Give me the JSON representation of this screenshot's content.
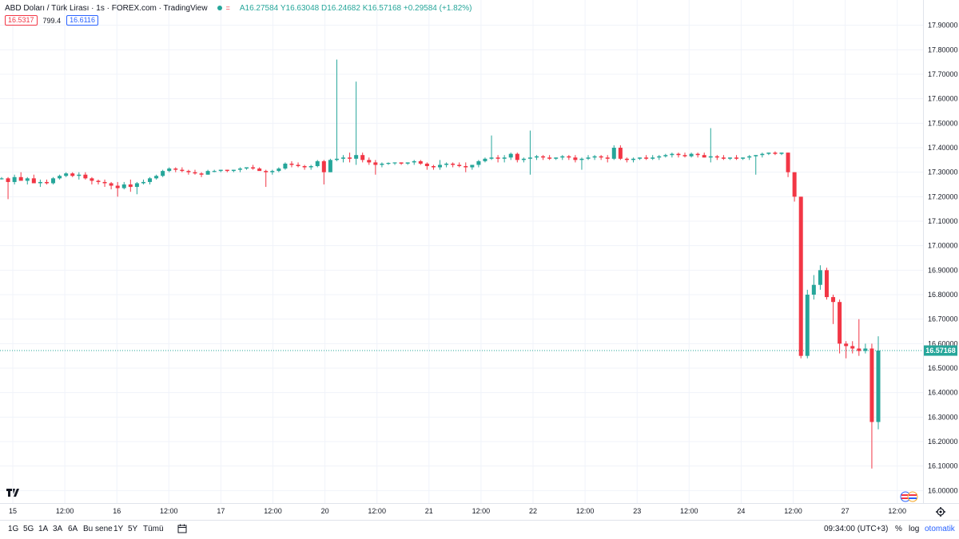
{
  "header": {
    "symbol": "ABD Doları / Türk Lirası · 1s · FOREX.com · TradingView",
    "status_mark": "=",
    "ohlc": "A16.27584 Y16.63048 D16.24682 K16.57168 +0.29584 (+1.82%)"
  },
  "trade": {
    "sell": "16.5317",
    "spread": "799.4",
    "buy": "16.6116"
  },
  "chart_data": {
    "type": "candlestick",
    "y_ticks": [
      "17.90000",
      "17.80000",
      "17.70000",
      "17.60000",
      "17.50000",
      "17.40000",
      "17.30000",
      "17.20000",
      "17.10000",
      "17.00000",
      "16.90000",
      "16.80000",
      "16.70000",
      "16.60000",
      "16.50000",
      "16.40000",
      "16.30000",
      "16.20000",
      "16.10000",
      "16.00000"
    ],
    "ylim": [
      15.962,
      17.938
    ],
    "x_ticks": [
      "15",
      "12:00",
      "16",
      "12:00",
      "17",
      "12:00",
      "20",
      "12:00",
      "21",
      "12:00",
      "22",
      "12:00",
      "23",
      "12:00",
      "24",
      "12:00",
      "27",
      "12:00"
    ],
    "last_price": "16.57168",
    "up_color": "#26a69a",
    "down_color": "#f23645",
    "candles": [
      [
        17.275,
        17.28,
        17.27,
        17.275
      ],
      [
        17.275,
        17.28,
        17.19,
        17.26
      ],
      [
        17.26,
        17.29,
        17.25,
        17.28
      ],
      [
        17.28,
        17.3,
        17.27,
        17.265
      ],
      [
        17.265,
        17.28,
        17.25,
        17.275
      ],
      [
        17.275,
        17.29,
        17.26,
        17.255
      ],
      [
        17.255,
        17.27,
        17.24,
        17.26
      ],
      [
        17.26,
        17.27,
        17.25,
        17.255
      ],
      [
        17.255,
        17.28,
        17.25,
        17.275
      ],
      [
        17.275,
        17.29,
        17.27,
        17.285
      ],
      [
        17.285,
        17.3,
        17.28,
        17.295
      ],
      [
        17.295,
        17.3,
        17.28,
        17.285
      ],
      [
        17.285,
        17.3,
        17.27,
        17.29
      ],
      [
        17.29,
        17.3,
        17.27,
        17.275
      ],
      [
        17.275,
        17.28,
        17.25,
        17.265
      ],
      [
        17.265,
        17.27,
        17.25,
        17.26
      ],
      [
        17.26,
        17.27,
        17.24,
        17.255
      ],
      [
        17.255,
        17.26,
        17.23,
        17.245
      ],
      [
        17.245,
        17.26,
        17.2,
        17.235
      ],
      [
        17.235,
        17.26,
        17.23,
        17.25
      ],
      [
        17.25,
        17.27,
        17.22,
        17.24
      ],
      [
        17.24,
        17.26,
        17.21,
        17.255
      ],
      [
        17.255,
        17.27,
        17.25,
        17.26
      ],
      [
        17.26,
        17.28,
        17.25,
        17.275
      ],
      [
        17.275,
        17.29,
        17.27,
        17.285
      ],
      [
        17.285,
        17.31,
        17.28,
        17.305
      ],
      [
        17.305,
        17.32,
        17.3,
        17.315
      ],
      [
        17.315,
        17.32,
        17.3,
        17.31
      ],
      [
        17.31,
        17.32,
        17.3,
        17.305
      ],
      [
        17.305,
        17.31,
        17.29,
        17.3
      ],
      [
        17.3,
        17.31,
        17.29,
        17.295
      ],
      [
        17.295,
        17.3,
        17.28,
        17.29
      ],
      [
        17.29,
        17.31,
        17.29,
        17.305
      ],
      [
        17.305,
        17.31,
        17.3,
        17.305
      ],
      [
        17.305,
        17.31,
        17.3,
        17.31
      ],
      [
        17.31,
        17.31,
        17.3,
        17.305
      ],
      [
        17.305,
        17.31,
        17.3,
        17.31
      ],
      [
        17.31,
        17.32,
        17.3,
        17.315
      ],
      [
        17.315,
        17.32,
        17.31,
        17.32
      ],
      [
        17.32,
        17.33,
        17.31,
        17.315
      ],
      [
        17.315,
        17.32,
        17.31,
        17.305
      ],
      [
        17.305,
        17.31,
        17.24,
        17.3
      ],
      [
        17.3,
        17.31,
        17.29,
        17.305
      ],
      [
        17.305,
        17.32,
        17.3,
        17.315
      ],
      [
        17.315,
        17.34,
        17.31,
        17.335
      ],
      [
        17.335,
        17.345,
        17.32,
        17.33
      ],
      [
        17.33,
        17.34,
        17.32,
        17.325
      ],
      [
        17.325,
        17.33,
        17.31,
        17.32
      ],
      [
        17.32,
        17.33,
        17.31,
        17.325
      ],
      [
        17.325,
        17.35,
        17.32,
        17.345
      ],
      [
        17.345,
        17.35,
        17.25,
        17.3
      ],
      [
        17.3,
        17.355,
        17.3,
        17.35
      ],
      [
        17.35,
        17.76,
        17.345,
        17.355
      ],
      [
        17.355,
        17.37,
        17.34,
        17.36
      ],
      [
        17.36,
        17.38,
        17.34,
        17.355
      ],
      [
        17.355,
        17.67,
        17.33,
        17.37
      ],
      [
        17.37,
        17.38,
        17.34,
        17.35
      ],
      [
        17.35,
        17.36,
        17.33,
        17.34
      ],
      [
        17.34,
        17.35,
        17.29,
        17.33
      ],
      [
        17.33,
        17.34,
        17.32,
        17.335
      ],
      [
        17.335,
        17.34,
        17.33,
        17.338
      ],
      [
        17.338,
        17.34,
        17.33,
        17.34
      ],
      [
        17.34,
        17.34,
        17.33,
        17.335
      ],
      [
        17.335,
        17.34,
        17.33,
        17.34
      ],
      [
        17.34,
        17.35,
        17.33,
        17.345
      ],
      [
        17.345,
        17.35,
        17.33,
        17.335
      ],
      [
        17.335,
        17.34,
        17.31,
        17.325
      ],
      [
        17.325,
        17.33,
        17.31,
        17.32
      ],
      [
        17.32,
        17.35,
        17.31,
        17.33
      ],
      [
        17.33,
        17.34,
        17.32,
        17.335
      ],
      [
        17.335,
        17.34,
        17.32,
        17.33
      ],
      [
        17.33,
        17.34,
        17.32,
        17.325
      ],
      [
        17.325,
        17.34,
        17.3,
        17.32
      ],
      [
        17.32,
        17.33,
        17.31,
        17.33
      ],
      [
        17.33,
        17.35,
        17.32,
        17.345
      ],
      [
        17.345,
        17.36,
        17.34,
        17.355
      ],
      [
        17.355,
        17.45,
        17.35,
        17.36
      ],
      [
        17.36,
        17.37,
        17.34,
        17.355
      ],
      [
        17.355,
        17.37,
        17.34,
        17.36
      ],
      [
        17.36,
        17.38,
        17.35,
        17.375
      ],
      [
        17.375,
        17.38,
        17.34,
        17.35
      ],
      [
        17.35,
        17.36,
        17.34,
        17.355
      ],
      [
        17.355,
        17.47,
        17.29,
        17.36
      ],
      [
        17.36,
        17.37,
        17.35,
        17.365
      ],
      [
        17.365,
        17.37,
        17.35,
        17.36
      ],
      [
        17.36,
        17.37,
        17.35,
        17.355
      ],
      [
        17.355,
        17.36,
        17.35,
        17.36
      ],
      [
        17.36,
        17.37,
        17.35,
        17.365
      ],
      [
        17.365,
        17.37,
        17.35,
        17.36
      ],
      [
        17.36,
        17.37,
        17.34,
        17.35
      ],
      [
        17.35,
        17.36,
        17.31,
        17.355
      ],
      [
        17.355,
        17.37,
        17.35,
        17.36
      ],
      [
        17.36,
        17.37,
        17.35,
        17.365
      ],
      [
        17.365,
        17.37,
        17.35,
        17.36
      ],
      [
        17.36,
        17.37,
        17.34,
        17.355
      ],
      [
        17.355,
        17.41,
        17.35,
        17.4
      ],
      [
        17.4,
        17.41,
        17.35,
        17.355
      ],
      [
        17.355,
        17.36,
        17.34,
        17.35
      ],
      [
        17.35,
        17.36,
        17.34,
        17.355
      ],
      [
        17.355,
        17.36,
        17.35,
        17.36
      ],
      [
        17.36,
        17.37,
        17.35,
        17.355
      ],
      [
        17.355,
        17.37,
        17.35,
        17.36
      ],
      [
        17.36,
        17.37,
        17.35,
        17.365
      ],
      [
        17.365,
        17.375,
        17.36,
        17.37
      ],
      [
        17.37,
        17.38,
        17.36,
        17.375
      ],
      [
        17.375,
        17.38,
        17.36,
        17.37
      ],
      [
        17.37,
        17.38,
        17.36,
        17.365
      ],
      [
        17.365,
        17.38,
        17.36,
        17.375
      ],
      [
        17.375,
        17.38,
        17.36,
        17.37
      ],
      [
        17.37,
        17.38,
        17.36,
        17.36
      ],
      [
        17.36,
        17.48,
        17.34,
        17.365
      ],
      [
        17.365,
        17.37,
        17.35,
        17.36
      ],
      [
        17.36,
        17.37,
        17.35,
        17.355
      ],
      [
        17.355,
        17.36,
        17.35,
        17.36
      ],
      [
        17.36,
        17.37,
        17.35,
        17.355
      ],
      [
        17.355,
        17.36,
        17.35,
        17.36
      ],
      [
        17.36,
        17.37,
        17.35,
        17.365
      ],
      [
        17.365,
        17.37,
        17.29,
        17.37
      ],
      [
        17.37,
        17.38,
        17.36,
        17.375
      ],
      [
        17.375,
        17.38,
        17.37,
        17.38
      ],
      [
        17.38,
        17.385,
        17.37,
        17.375
      ],
      [
        17.375,
        17.38,
        17.37,
        17.38
      ],
      [
        17.38,
        17.38,
        17.28,
        17.3
      ],
      [
        17.3,
        17.3,
        17.18,
        17.2
      ],
      [
        17.2,
        17.2,
        16.54,
        16.55
      ],
      [
        16.55,
        16.82,
        16.54,
        16.8
      ],
      [
        16.8,
        16.88,
        16.78,
        16.84
      ],
      [
        16.84,
        16.92,
        16.82,
        16.9
      ],
      [
        16.9,
        16.91,
        16.78,
        16.79
      ],
      [
        16.79,
        16.8,
        16.68,
        16.77
      ],
      [
        16.77,
        16.78,
        16.56,
        16.6
      ],
      [
        16.6,
        16.61,
        16.54,
        16.59
      ],
      [
        16.59,
        16.61,
        16.56,
        16.58
      ],
      [
        16.58,
        16.7,
        16.55,
        16.57
      ],
      [
        16.57,
        16.6,
        16.56,
        16.58
      ],
      [
        16.58,
        16.6,
        16.09,
        16.28
      ],
      [
        16.28,
        16.63,
        16.25,
        16.57168
      ]
    ]
  },
  "ranges": [
    "1G",
    "5G",
    "1A",
    "3A",
    "6A",
    "Bu sene",
    "1Y",
    "5Y",
    "Tümü"
  ],
  "footer": {
    "time": "09:34:00 (UTC+3)",
    "percent": "%",
    "log": "log",
    "auto": "otomatik"
  }
}
